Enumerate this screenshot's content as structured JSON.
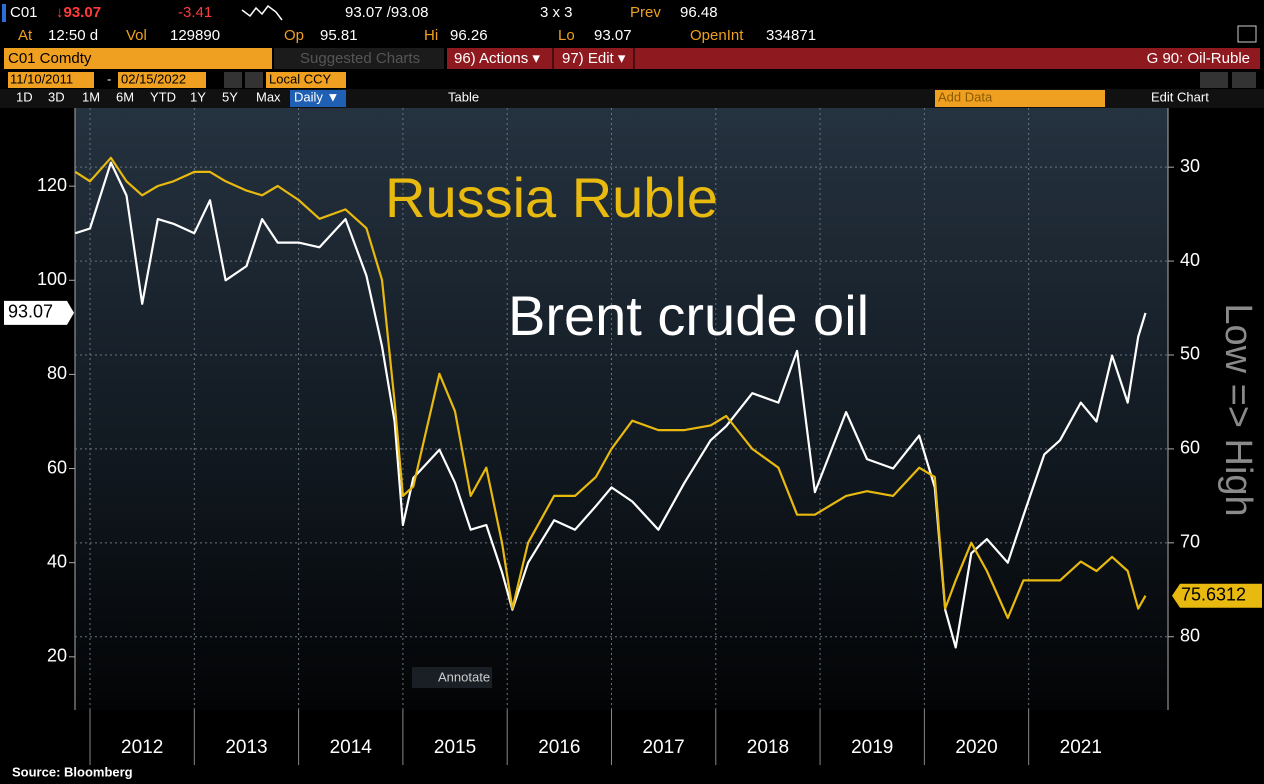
{
  "header": {
    "ticker": "C01",
    "last": "↓93.07",
    "change": "-3.41",
    "bid_ask": "93.07 /93.08",
    "size": "3 x 3",
    "prev_label": "Prev",
    "prev": "96.48",
    "time_label": "At",
    "time": "12:50 d",
    "vol_label": "Vol",
    "vol": "129890",
    "open_label": "Op",
    "open": "95.81",
    "high_label": "Hi",
    "high": "96.26",
    "low_label": "Lo",
    "low": "93.07",
    "oi_label": "OpenInt",
    "oi": "334871",
    "security": "C01 Comdty",
    "suggested": "Suggested Charts",
    "actions": "96) Actions ▾",
    "edit": "97) Edit ▾",
    "page": "G 90: Oil-Ruble",
    "start_date": "11/10/2011",
    "end_date": "02/15/2022",
    "currency": "Local CCY",
    "periods": [
      "1D",
      "3D",
      "1M",
      "6M",
      "YTD",
      "1Y",
      "5Y",
      "Max"
    ],
    "frequency": "Daily ▼",
    "table": "Table",
    "add_data": "Add Data",
    "edit_chart": "Edit Chart",
    "annotate": "Annotate"
  },
  "chart_data": {
    "type": "line",
    "x": [
      2011.86,
      2012.0,
      2012.2,
      2012.35,
      2012.5,
      2012.65,
      2012.8,
      2013.0,
      2013.15,
      2013.3,
      2013.5,
      2013.65,
      2013.8,
      2014.0,
      2014.2,
      2014.45,
      2014.65,
      2014.8,
      2014.92,
      2015.0,
      2015.1,
      2015.35,
      2015.5,
      2015.65,
      2015.8,
      2015.95,
      2016.05,
      2016.2,
      2016.45,
      2016.65,
      2016.85,
      2017.0,
      2017.2,
      2017.45,
      2017.7,
      2017.95,
      2018.1,
      2018.35,
      2018.6,
      2018.78,
      2018.95,
      2019.25,
      2019.45,
      2019.7,
      2019.95,
      2020.1,
      2020.2,
      2020.3,
      2020.45,
      2020.6,
      2020.8,
      2020.95,
      2021.15,
      2021.3,
      2021.5,
      2021.65,
      2021.8,
      2021.95,
      2022.05,
      2022.12
    ],
    "xlim": [
      2011.856,
      2022.336
    ],
    "xticks": [
      2012,
      2013,
      2014,
      2015,
      2016,
      2017,
      2018,
      2019,
      2020,
      2021
    ],
    "ylim": [
      8.7,
      136.6
    ],
    "yticks": [
      20,
      40,
      60,
      80,
      100,
      120
    ],
    "y2lim": [
      87.8,
      23.7
    ],
    "y2ticks": [
      30,
      40,
      50,
      60,
      70,
      80
    ],
    "y2label": "Low => High",
    "grid": true,
    "series": [
      {
        "name": "Brent crude oil",
        "color": "#ffffff",
        "values": [
          110,
          111,
          125,
          118,
          95,
          113,
          112,
          110,
          117,
          100,
          103,
          113,
          108,
          108,
          107,
          113,
          101,
          86,
          70,
          48,
          58,
          64,
          57,
          47,
          48,
          38,
          30,
          40,
          49,
          47,
          52,
          56,
          53,
          47,
          57,
          66,
          69,
          76,
          74,
          85,
          55,
          72,
          62,
          60,
          67,
          56,
          30,
          22,
          42,
          45,
          40,
          50,
          63,
          66,
          74,
          70,
          84,
          74,
          88,
          93.07
        ]
      },
      {
        "name": "Russia Ruble",
        "color": "#e8b90f",
        "axis": "y2",
        "values": [
          30.5,
          31.5,
          29,
          31.5,
          33,
          32,
          31.5,
          30.5,
          30.5,
          31.5,
          32.5,
          33,
          32,
          33.5,
          35.5,
          34.5,
          36.5,
          42,
          55,
          65,
          64,
          52,
          56,
          65,
          62,
          70,
          77,
          70,
          65,
          65,
          63,
          60,
          57,
          58,
          58,
          57.5,
          56.5,
          60,
          62,
          67,
          67,
          65,
          64.5,
          65,
          62,
          63,
          77,
          74,
          70,
          73,
          78,
          74,
          74,
          74,
          72,
          73,
          71.5,
          73,
          77,
          75.6312
        ]
      }
    ],
    "source": "Source: Bloomberg"
  }
}
